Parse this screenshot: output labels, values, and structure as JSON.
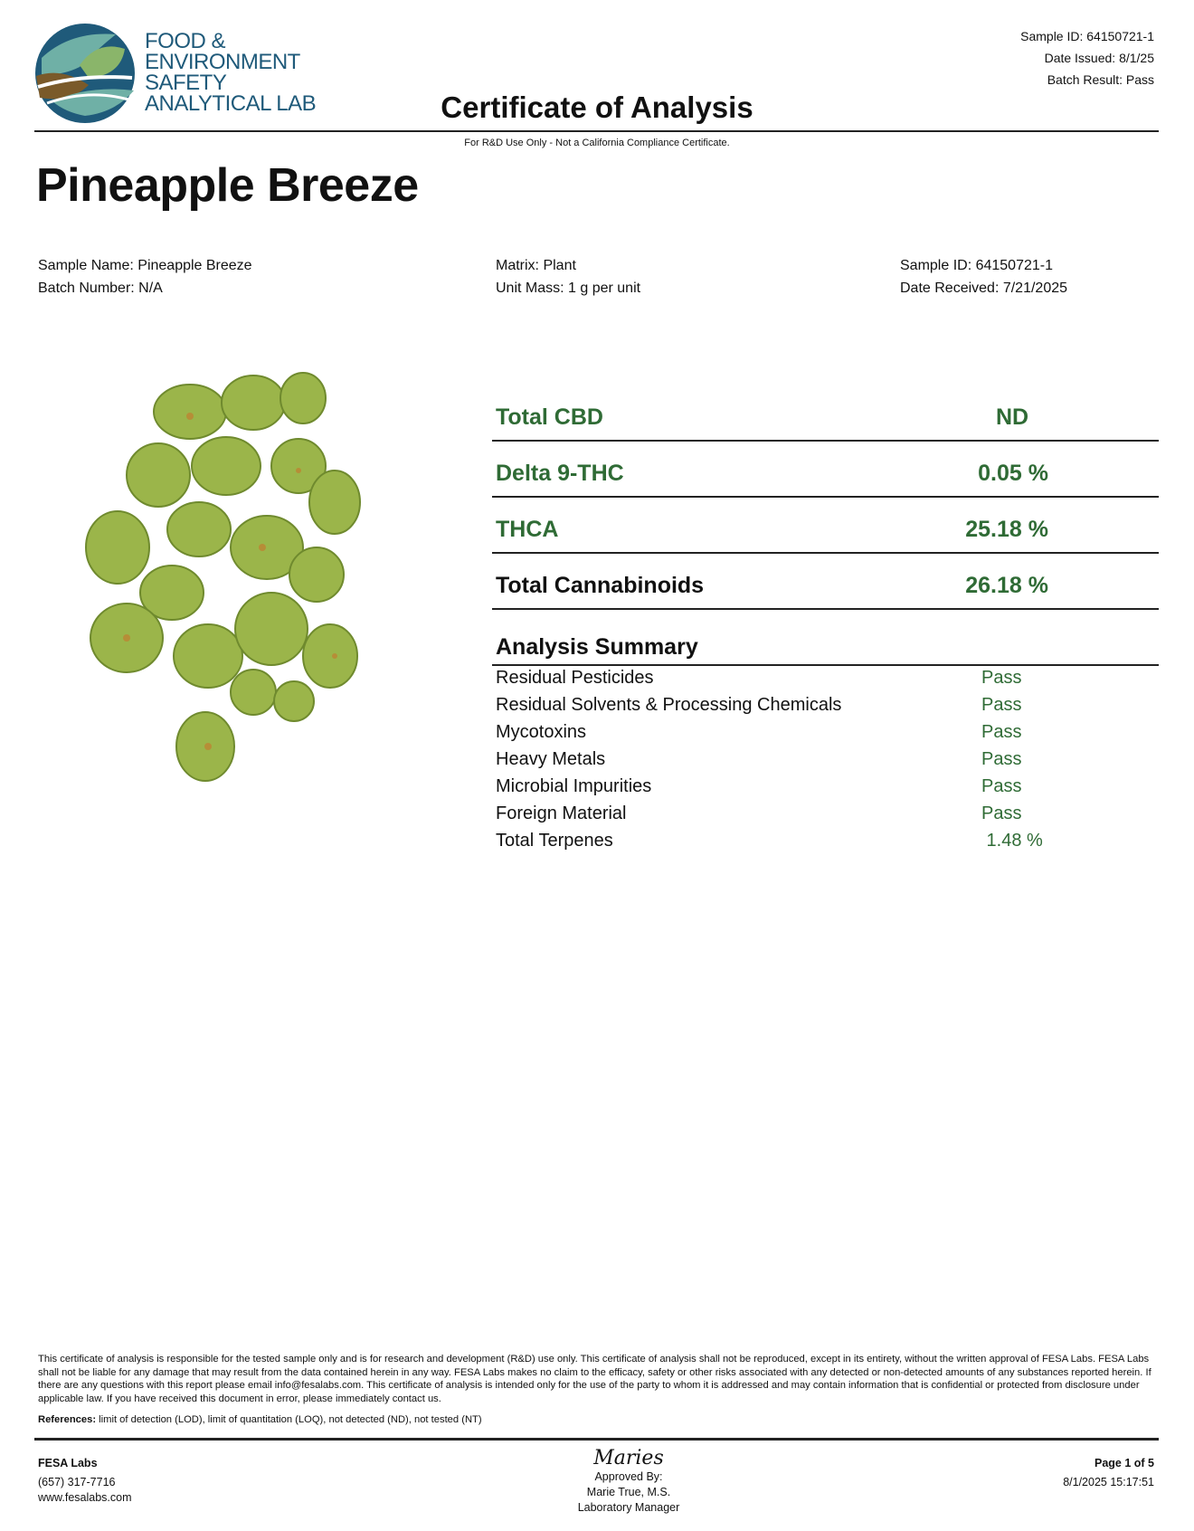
{
  "logo": {
    "lines": [
      "FOOD &",
      "ENVIRONMENT",
      "SAFETY",
      "ANALYTICAL LAB"
    ]
  },
  "header": {
    "sample_id": "Sample ID: 64150721-1",
    "date_issued": "Date Issued: 8/1/25",
    "batch_result": "Batch Result: Pass",
    "title": "Certificate of Analysis",
    "note": "For R&D Use Only - Not a California Compliance Certificate."
  },
  "product_name": "Pineapple Breeze",
  "info": {
    "sample_name": "Sample Name: Pineapple Breeze",
    "batch_number": "Batch Number: N/A",
    "matrix": "Matrix: Plant",
    "unit_mass": "Unit Mass: 1 g per unit",
    "sample_id": "Sample ID: 64150721-1",
    "date_received": "Date Received: 7/21/2025"
  },
  "results": [
    {
      "label": "Total CBD",
      "value": "ND"
    },
    {
      "label": "Delta 9-THC",
      "value": "0.05 %"
    },
    {
      "label": "THCA",
      "value": "25.18 %"
    },
    {
      "label": "Total Cannabinoids",
      "value": "26.18 %"
    }
  ],
  "summary": {
    "title": "Analysis Summary",
    "items": [
      {
        "label": "Residual Pesticides",
        "value": "Pass"
      },
      {
        "label": "Residual Solvents & Processing Chemicals",
        "value": "Pass"
      },
      {
        "label": "Mycotoxins",
        "value": "Pass"
      },
      {
        "label": "Heavy Metals",
        "value": "Pass"
      },
      {
        "label": "Microbial Impurities",
        "value": "Pass"
      },
      {
        "label": "Foreign Material",
        "value": "Pass"
      },
      {
        "label": "Total Terpenes",
        "value": " 1.48 %"
      }
    ]
  },
  "disclaimer": "This certificate of analysis is responsible for the tested sample only and is for research and development (R&D) use only. This certificate of analysis shall not be reproduced, except in its entirety, without the written approval of FESA Labs. FESA Labs shall not be liable for any damage that may result from the data contained herein in any way. FESA Labs makes no claim to the efficacy, safety or other risks associated with any detected or non-detected amounts of any substances reported herein. If there are any questions with this report please email info@fesalabs.com. This certificate of analysis is intended only for the use of the party to whom it is addressed and may contain information that is confidential or protected from disclosure under applicable law. If you have received this document in error, please immediately contact us.",
  "references": {
    "label": "References:",
    "text": " limit of detection (LOD), limit of quantitation (LOQ), not detected (ND), not tested (NT)"
  },
  "footer": {
    "company": "FESA Labs",
    "phone": "(657) 317-7716",
    "website": "www.fesalabs.com",
    "signature": "Maries",
    "approved_by": "Approved By:",
    "approver": "Marie True, M.S.",
    "approver_title": "Laboratory Manager",
    "page": "Page 1 of 5",
    "timestamp": "8/1/2025 15:17:51"
  },
  "colors": {
    "accent_green": "#2f6b35",
    "logo_blue": "#1f5a7a"
  }
}
